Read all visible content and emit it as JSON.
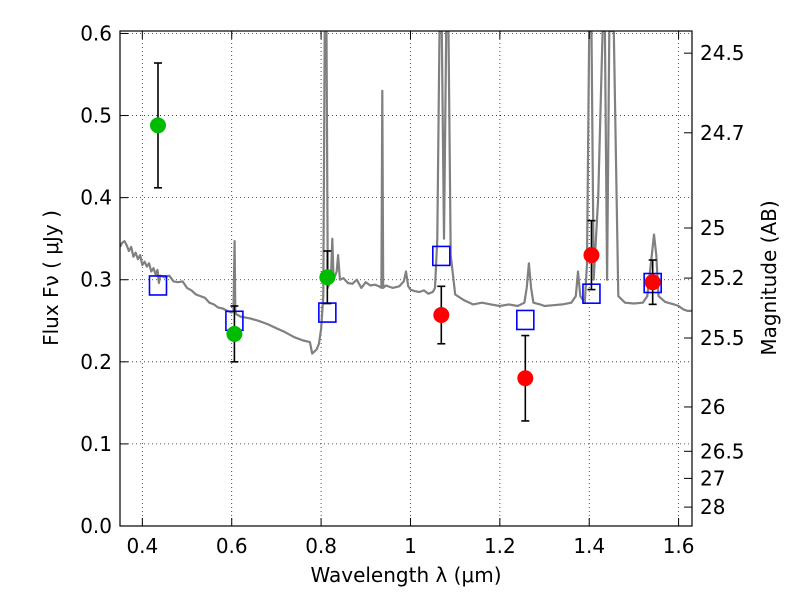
{
  "chart_data": {
    "type": "line",
    "xlabel": "Wavelength  λ (μm)",
    "ylabel": "Flux  Fν  ( μJy )",
    "ylabel_right": "Magnitude (AB)",
    "xlim": [
      0.35,
      1.63
    ],
    "ylim": [
      0.0,
      0.603
    ],
    "grid": true,
    "x_ticks": [
      {
        "value": 0.4,
        "label": "0.4"
      },
      {
        "value": 0.6,
        "label": "0.6"
      },
      {
        "value": 0.8,
        "label": "0.8"
      },
      {
        "value": 1.0,
        "label": "1"
      },
      {
        "value": 1.2,
        "label": "1.2"
      },
      {
        "value": 1.4,
        "label": "1.4"
      },
      {
        "value": 1.6,
        "label": "1.6"
      }
    ],
    "y_ticks": [
      {
        "value": 0.0,
        "label": "0.0"
      },
      {
        "value": 0.1,
        "label": "0.1"
      },
      {
        "value": 0.2,
        "label": "0.2"
      },
      {
        "value": 0.3,
        "label": "0.3"
      },
      {
        "value": 0.4,
        "label": "0.4"
      },
      {
        "value": 0.5,
        "label": "0.5"
      },
      {
        "value": 0.6,
        "label": "0.6"
      }
    ],
    "right_ticks": [
      {
        "flux": 0.576,
        "label": "24.5"
      },
      {
        "flux": 0.479,
        "label": "24.7"
      },
      {
        "flux": 0.363,
        "label": "25"
      },
      {
        "flux": 0.302,
        "label": "25.2"
      },
      {
        "flux": 0.229,
        "label": "25.5"
      },
      {
        "flux": 0.145,
        "label": "26"
      },
      {
        "flux": 0.091,
        "label": "26.5"
      },
      {
        "flux": 0.058,
        "label": "27"
      },
      {
        "flux": 0.023,
        "label": "28"
      }
    ],
    "series": [
      {
        "kind": "model-spectrum",
        "color": "#808080",
        "points": [
          [
            0.35,
            0.34
          ],
          [
            0.355,
            0.345
          ],
          [
            0.36,
            0.347
          ],
          [
            0.365,
            0.342
          ],
          [
            0.37,
            0.335
          ],
          [
            0.375,
            0.34
          ],
          [
            0.38,
            0.328
          ],
          [
            0.385,
            0.333
          ],
          [
            0.39,
            0.325
          ],
          [
            0.395,
            0.33
          ],
          [
            0.4,
            0.318
          ],
          [
            0.405,
            0.322
          ],
          [
            0.41,
            0.316
          ],
          [
            0.415,
            0.32
          ],
          [
            0.42,
            0.31
          ],
          [
            0.425,
            0.314
          ],
          [
            0.43,
            0.306
          ],
          [
            0.434,
            0.312
          ],
          [
            0.437,
            0.296
          ],
          [
            0.44,
            0.305
          ],
          [
            0.45,
            0.303
          ],
          [
            0.46,
            0.305
          ],
          [
            0.47,
            0.298
          ],
          [
            0.48,
            0.297
          ],
          [
            0.49,
            0.298
          ],
          [
            0.5,
            0.29
          ],
          [
            0.51,
            0.287
          ],
          [
            0.52,
            0.282
          ],
          [
            0.53,
            0.28
          ],
          [
            0.54,
            0.278
          ],
          [
            0.55,
            0.272
          ],
          [
            0.56,
            0.27
          ],
          [
            0.57,
            0.266
          ],
          [
            0.58,
            0.265
          ],
          [
            0.59,
            0.262
          ],
          [
            0.6,
            0.26
          ],
          [
            0.604,
            0.262
          ],
          [
            0.6065,
            0.347
          ],
          [
            0.608,
            0.262
          ],
          [
            0.61,
            0.258
          ],
          [
            0.62,
            0.255
          ],
          [
            0.64,
            0.253
          ],
          [
            0.66,
            0.25
          ],
          [
            0.68,
            0.246
          ],
          [
            0.7,
            0.241
          ],
          [
            0.72,
            0.236
          ],
          [
            0.74,
            0.23
          ],
          [
            0.76,
            0.226
          ],
          [
            0.775,
            0.224
          ],
          [
            0.78,
            0.21
          ],
          [
            0.79,
            0.215
          ],
          [
            0.795,
            0.222
          ],
          [
            0.8,
            0.24
          ],
          [
            0.805,
            0.28
          ],
          [
            0.808,
            0.603
          ],
          [
            0.812,
            0.603
          ],
          [
            0.815,
            0.29
          ],
          [
            0.822,
            0.3
          ],
          [
            0.825,
            0.35
          ],
          [
            0.828,
            0.3
          ],
          [
            0.835,
            0.31
          ],
          [
            0.838,
            0.33
          ],
          [
            0.842,
            0.3
          ],
          [
            0.85,
            0.302
          ],
          [
            0.86,
            0.296
          ],
          [
            0.87,
            0.295
          ],
          [
            0.88,
            0.3
          ],
          [
            0.89,
            0.29
          ],
          [
            0.9,
            0.297
          ],
          [
            0.91,
            0.293
          ],
          [
            0.92,
            0.294
          ],
          [
            0.93,
            0.292
          ],
          [
            0.935,
            0.29
          ],
          [
            0.937,
            0.53
          ],
          [
            0.939,
            0.29
          ],
          [
            0.945,
            0.293
          ],
          [
            0.96,
            0.29
          ],
          [
            0.975,
            0.292
          ],
          [
            0.985,
            0.298
          ],
          [
            0.99,
            0.31
          ],
          [
            0.995,
            0.292
          ],
          [
            1.0,
            0.288
          ],
          [
            1.01,
            0.286
          ],
          [
            1.02,
            0.285
          ],
          [
            1.03,
            0.287
          ],
          [
            1.04,
            0.283
          ],
          [
            1.05,
            0.285
          ],
          [
            1.055,
            0.29
          ],
          [
            1.06,
            0.35
          ],
          [
            1.065,
            0.603
          ],
          [
            1.07,
            0.603
          ],
          [
            1.075,
            0.35
          ],
          [
            1.08,
            0.603
          ],
          [
            1.085,
            0.603
          ],
          [
            1.09,
            0.33
          ],
          [
            1.1,
            0.282
          ],
          [
            1.12,
            0.275
          ],
          [
            1.14,
            0.27
          ],
          [
            1.16,
            0.272
          ],
          [
            1.18,
            0.27
          ],
          [
            1.2,
            0.268
          ],
          [
            1.22,
            0.27
          ],
          [
            1.24,
            0.268
          ],
          [
            1.255,
            0.272
          ],
          [
            1.26,
            0.29
          ],
          [
            1.265,
            0.32
          ],
          [
            1.27,
            0.29
          ],
          [
            1.275,
            0.272
          ],
          [
            1.29,
            0.27
          ],
          [
            1.3,
            0.268
          ],
          [
            1.32,
            0.269
          ],
          [
            1.34,
            0.27
          ],
          [
            1.36,
            0.272
          ],
          [
            1.37,
            0.28
          ],
          [
            1.375,
            0.31
          ],
          [
            1.38,
            0.28
          ],
          [
            1.39,
            0.272
          ],
          [
            1.395,
            0.32
          ],
          [
            1.4,
            0.603
          ],
          [
            1.405,
            0.603
          ],
          [
            1.41,
            0.3
          ],
          [
            1.42,
            0.4
          ],
          [
            1.43,
            0.603
          ],
          [
            1.435,
            0.603
          ],
          [
            1.44,
            0.3
          ],
          [
            1.445,
            0.603
          ],
          [
            1.455,
            0.603
          ],
          [
            1.465,
            0.28
          ],
          [
            1.48,
            0.272
          ],
          [
            1.5,
            0.271
          ],
          [
            1.52,
            0.272
          ],
          [
            1.53,
            0.28
          ],
          [
            1.54,
            0.33
          ],
          [
            1.545,
            0.355
          ],
          [
            1.55,
            0.33
          ],
          [
            1.555,
            0.28
          ],
          [
            1.57,
            0.273
          ],
          [
            1.59,
            0.27
          ],
          [
            1.6,
            0.268
          ],
          [
            1.61,
            0.264
          ],
          [
            1.62,
            0.262
          ],
          [
            1.63,
            0.262
          ]
        ]
      },
      {
        "kind": "model-photometry",
        "marker": "open-square",
        "color": "#0000ff",
        "points": [
          {
            "x": 0.435,
            "y": 0.293
          },
          {
            "x": 0.606,
            "y": 0.25
          },
          {
            "x": 0.814,
            "y": 0.26
          },
          {
            "x": 1.069,
            "y": 0.329
          },
          {
            "x": 1.257,
            "y": 0.251
          },
          {
            "x": 1.405,
            "y": 0.283
          },
          {
            "x": 1.542,
            "y": 0.296
          }
        ]
      },
      {
        "kind": "observed-detections",
        "marker": "filled-circle",
        "color": "#00bb00",
        "points": [
          {
            "x": 0.435,
            "y": 0.488,
            "yerr": 0.076
          },
          {
            "x": 0.606,
            "y": 0.234,
            "yerr": 0.034
          },
          {
            "x": 0.814,
            "y": 0.303,
            "yerr": 0.032
          }
        ]
      },
      {
        "kind": "observed-detections-ir",
        "marker": "filled-circle",
        "color": "#ff0000",
        "points": [
          {
            "x": 1.069,
            "y": 0.257,
            "yerr": 0.035
          },
          {
            "x": 1.257,
            "y": 0.18,
            "yerr": 0.052
          },
          {
            "x": 1.405,
            "y": 0.33,
            "yerr": 0.042
          },
          {
            "x": 1.542,
            "y": 0.297,
            "yerr": 0.027
          }
        ]
      }
    ]
  }
}
